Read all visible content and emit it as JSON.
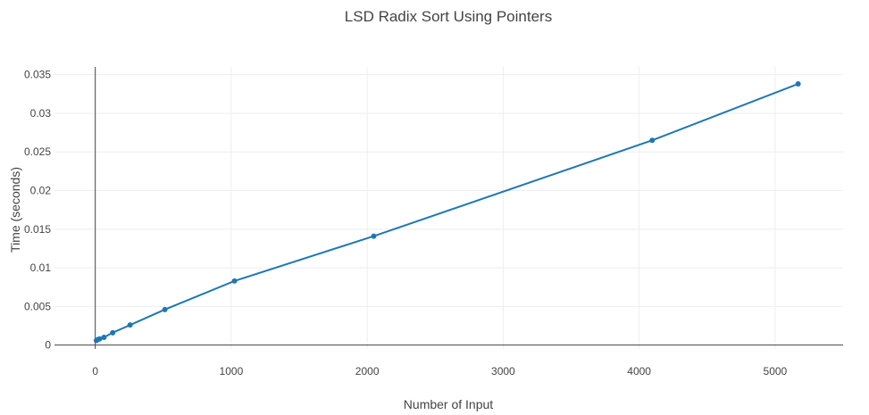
{
  "chart_data": {
    "type": "line",
    "title": "LSD Radix Sort Using Pointers",
    "xlabel": "Number of Input",
    "ylabel": "Time (seconds)",
    "xlim": [
      -300,
      5500
    ],
    "ylim": [
      -0.0005,
      0.036
    ],
    "xticks": [
      0,
      1000,
      2000,
      3000,
      4000,
      5000
    ],
    "xtick_labels": [
      "0",
      "1000",
      "2000",
      "3000",
      "4000",
      "5000"
    ],
    "yticks": [
      0,
      0.005,
      0.01,
      0.015,
      0.02,
      0.025,
      0.03,
      0.035
    ],
    "ytick_labels": [
      "0",
      "0.005",
      "0.01",
      "0.015",
      "0.02",
      "0.025",
      "0.03",
      "0.035"
    ],
    "grid": true,
    "series": [
      {
        "color": "#1f77b4",
        "x": [
          8,
          16,
          32,
          64,
          128,
          256,
          512,
          1024,
          2048,
          4096,
          5169
        ],
        "y": [
          0.0006,
          0.0007,
          0.0008,
          0.001,
          0.0016,
          0.0026,
          0.0046,
          0.0083,
          0.0141,
          0.0265,
          0.0338
        ]
      }
    ]
  }
}
